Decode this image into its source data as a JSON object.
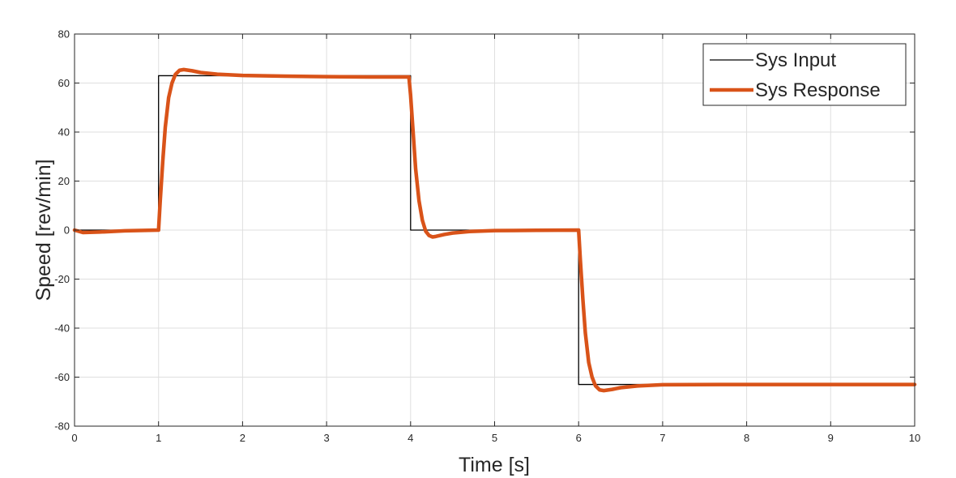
{
  "chart_data": {
    "type": "line",
    "title": "",
    "xlabel": "Time [s]",
    "ylabel": "Speed [rev/min]",
    "xlim": [
      0,
      10
    ],
    "ylim": [
      -80,
      80
    ],
    "xticks": [
      0,
      1,
      2,
      3,
      4,
      5,
      6,
      7,
      8,
      9,
      10
    ],
    "yticks": [
      -80,
      -60,
      -40,
      -20,
      0,
      20,
      40,
      60,
      80
    ],
    "x_tick_labels": [
      "0",
      "1",
      "2",
      "3",
      "4",
      "5",
      "6",
      "7",
      "8",
      "9",
      "10"
    ],
    "y_tick_labels": [
      "-80",
      "-60",
      "-40",
      "-20",
      "0",
      "20",
      "40",
      "60",
      "80"
    ],
    "grid": true,
    "legend_position": "top-right",
    "series": [
      {
        "name": "Sys Input",
        "color": "#000000",
        "style": "thin",
        "x": [
          0,
          1,
          1,
          4,
          4,
          6,
          6,
          10
        ],
        "y": [
          0,
          0,
          63,
          63,
          0,
          0,
          -63,
          -63
        ]
      },
      {
        "name": "Sys Response",
        "color": "#d95319",
        "style": "thick",
        "x": [
          0,
          0.1,
          0.3,
          0.6,
          1.0,
          1.02,
          1.05,
          1.08,
          1.12,
          1.16,
          1.2,
          1.25,
          1.3,
          1.4,
          1.5,
          1.7,
          2.0,
          2.5,
          3.0,
          3.5,
          3.98,
          4.0,
          4.03,
          4.06,
          4.1,
          4.14,
          4.18,
          4.22,
          4.26,
          4.3,
          4.4,
          4.5,
          4.7,
          5.0,
          5.5,
          6.0,
          6.02,
          6.05,
          6.08,
          6.12,
          6.16,
          6.2,
          6.25,
          6.3,
          6.4,
          6.5,
          6.7,
          7.0,
          8.0,
          9.0,
          10.0
        ],
        "y": [
          0,
          -1,
          -0.8,
          -0.3,
          0,
          12,
          28,
          42,
          54,
          60,
          63.5,
          65.2,
          65.5,
          65,
          64.3,
          63.6,
          63.1,
          62.8,
          62.6,
          62.5,
          62.5,
          55,
          40,
          25,
          12,
          4,
          -0.5,
          -2.2,
          -2.8,
          -2.6,
          -1.8,
          -1.2,
          -0.6,
          -0.2,
          -0.1,
          0,
          -12,
          -28,
          -42,
          -54,
          -60,
          -63.5,
          -65.2,
          -65.5,
          -65,
          -64.3,
          -63.6,
          -63.1,
          -63,
          -63,
          -63
        ]
      }
    ]
  }
}
